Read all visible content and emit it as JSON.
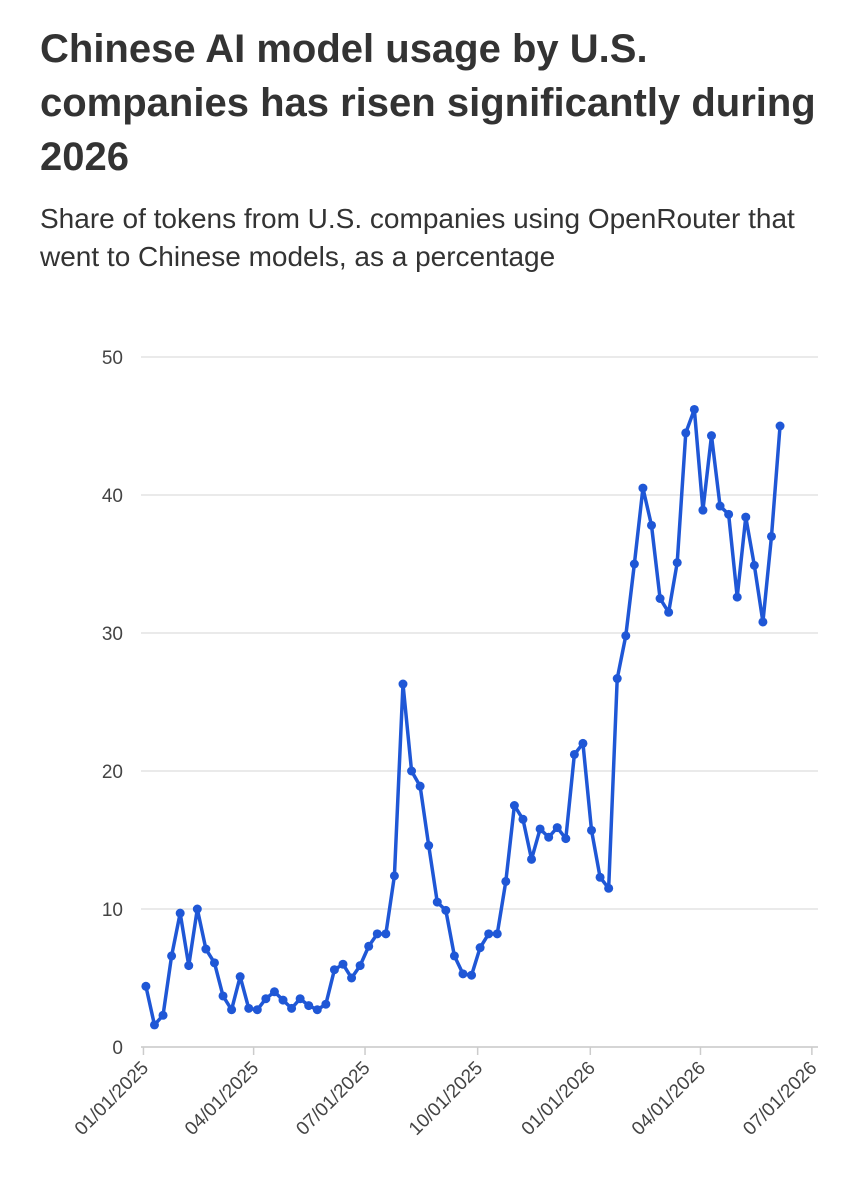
{
  "chart_data": {
    "type": "line",
    "title": "Chinese AI model usage by U.S. companies has risen significantly during 2026",
    "subtitle": "Share of tokens from U.S. companies using OpenRouter that went to Chinese models, as a percentage",
    "x": [
      "01/03/2025",
      "01/10/2025",
      "01/17/2025",
      "01/24/2025",
      "01/31/2025",
      "02/07/2025",
      "02/14/2025",
      "02/21/2025",
      "02/28/2025",
      "03/07/2025",
      "03/14/2025",
      "03/21/2025",
      "03/28/2025",
      "04/04/2025",
      "04/11/2025",
      "04/18/2025",
      "04/25/2025",
      "05/02/2025",
      "05/09/2025",
      "05/16/2025",
      "05/23/2025",
      "05/30/2025",
      "06/06/2025",
      "06/13/2025",
      "06/20/2025",
      "06/27/2025",
      "07/04/2025",
      "07/11/2025",
      "07/18/2025",
      "07/25/2025",
      "08/01/2025",
      "08/08/2025",
      "08/15/2025",
      "08/22/2025",
      "08/29/2025",
      "09/05/2025",
      "09/12/2025",
      "09/19/2025",
      "09/26/2025",
      "10/03/2025",
      "10/10/2025",
      "10/17/2025",
      "10/24/2025",
      "10/31/2025",
      "11/07/2025",
      "11/14/2025",
      "11/21/2025",
      "11/28/2025",
      "12/05/2025",
      "12/12/2025",
      "12/19/2025",
      "12/26/2025",
      "01/02/2026",
      "01/09/2026",
      "01/16/2026",
      "01/23/2026",
      "01/30/2026",
      "02/06/2026",
      "02/13/2026",
      "02/20/2026",
      "02/27/2026",
      "03/06/2026",
      "03/13/2026",
      "03/20/2026",
      "03/27/2026",
      "04/03/2026",
      "04/10/2026",
      "04/17/2026",
      "04/24/2026",
      "05/01/2026",
      "05/08/2026",
      "05/15/2026",
      "05/22/2026",
      "05/29/2026",
      "06/05/2026"
    ],
    "values": [
      4.4,
      1.6,
      2.3,
      6.6,
      9.7,
      5.9,
      10.0,
      7.1,
      6.1,
      3.7,
      2.7,
      5.1,
      2.8,
      2.7,
      3.5,
      4.0,
      3.4,
      2.8,
      3.5,
      3.0,
      2.7,
      3.1,
      5.6,
      6.0,
      5.0,
      5.9,
      7.3,
      8.2,
      8.2,
      12.4,
      26.3,
      20.0,
      18.9,
      14.6,
      10.5,
      9.9,
      6.6,
      5.3,
      5.2,
      7.2,
      8.2,
      8.2,
      12.0,
      17.5,
      16.5,
      13.6,
      15.8,
      15.2,
      15.9,
      15.1,
      21.2,
      22.0,
      15.7,
      12.3,
      11.5,
      26.7,
      29.8,
      35.0,
      40.5,
      37.8,
      32.5,
      31.5,
      35.1,
      44.5,
      46.2,
      38.9,
      44.3,
      39.2,
      38.6,
      32.6,
      38.4,
      34.9,
      30.8,
      37.0,
      45.0
    ],
    "color": "#1f57d6",
    "xlim": [
      "12/30/2024",
      "07/06/2026"
    ],
    "xticks": [
      "01/01/2025",
      "04/01/2025",
      "07/01/2025",
      "10/01/2025",
      "01/01/2026",
      "04/01/2026",
      "07/01/2026"
    ],
    "ylim": [
      0,
      50
    ],
    "yticks": [
      0,
      10,
      20,
      30,
      40,
      50
    ],
    "grid": true
  }
}
